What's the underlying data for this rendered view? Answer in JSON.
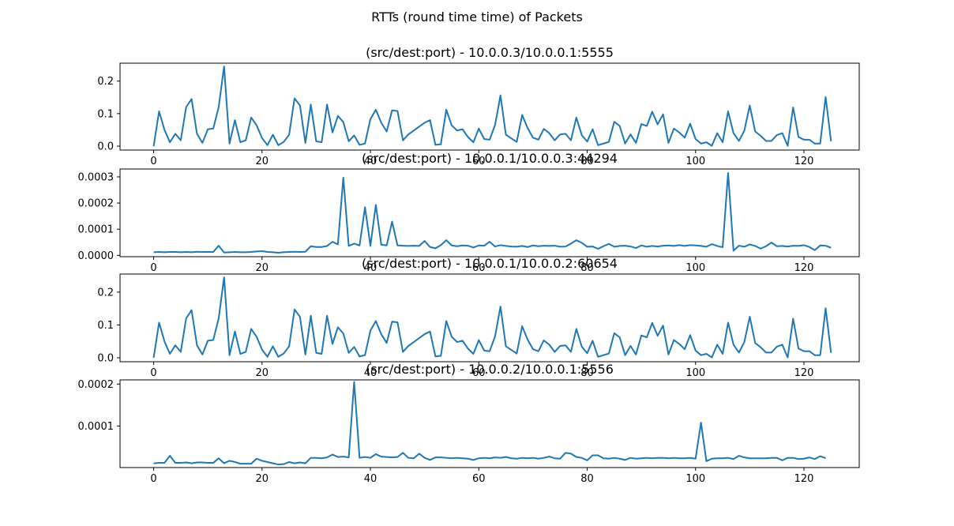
{
  "figure": {
    "suptitle": "RTTs (round time time) of Packets",
    "line_color": "#1f77b4"
  },
  "chart_data": [
    {
      "type": "line",
      "title": "(src/dest:port) - 10.0.0.3/10.0.0.1:5555",
      "xlim": [
        -6.2,
        130.2
      ],
      "ylim": [
        -0.012,
        0.255
      ],
      "xticks": [
        0,
        20,
        40,
        60,
        80,
        100,
        120
      ],
      "xtick_labels": [
        "0",
        "20",
        "40",
        "60",
        "80",
        "100",
        "120"
      ],
      "yticks": [
        0.0,
        0.1,
        0.2
      ],
      "ytick_labels": [
        "0.0",
        "0.1",
        "0.2"
      ],
      "series": [
        {
          "values": [
            0.0,
            0.107,
            0.05,
            0.012,
            0.038,
            0.018,
            0.12,
            0.145,
            0.038,
            0.01,
            0.052,
            0.054,
            0.12,
            0.245,
            0.008,
            0.08,
            0.012,
            0.018,
            0.088,
            0.064,
            0.025,
            0.003,
            0.035,
            0.003,
            0.013,
            0.035,
            0.147,
            0.125,
            0.01,
            0.128,
            0.015,
            0.012,
            0.128,
            0.042,
            0.093,
            0.074,
            0.015,
            0.033,
            0.004,
            0.008,
            0.083,
            0.112,
            0.072,
            0.045,
            0.11,
            0.108,
            0.018,
            0.036,
            0.048,
            0.06,
            0.072,
            0.08,
            0.004,
            0.006,
            0.112,
            0.064,
            0.048,
            0.052,
            0.028,
            0.012,
            0.054,
            0.022,
            0.02,
            0.065,
            0.156,
            0.035,
            0.024,
            0.013,
            0.096,
            0.056,
            0.026,
            0.02,
            0.053,
            0.04,
            0.018,
            0.036,
            0.038,
            0.018,
            0.088,
            0.034,
            0.014,
            0.052,
            0.003,
            0.008,
            0.013,
            0.075,
            0.062,
            0.008,
            0.036,
            0.01,
            0.068,
            0.062,
            0.106,
            0.067,
            0.098,
            0.01,
            0.054,
            0.042,
            0.026,
            0.069,
            0.022,
            0.008,
            0.012,
            0.001,
            0.04,
            0.012,
            0.107,
            0.04,
            0.016,
            0.048,
            0.125,
            0.045,
            0.032,
            0.016,
            0.016,
            0.034,
            0.04,
            0.001,
            0.119,
            0.028,
            0.02,
            0.02,
            0.008,
            0.008,
            0.151,
            0.015
          ]
        }
      ]
    },
    {
      "type": "line",
      "title": "(src/dest:port) - 10.0.0.1/10.0.0.3:44294",
      "xlim": [
        -6.2,
        130.2
      ],
      "ylim": [
        -5e-06,
        0.00033
      ],
      "xticks": [
        0,
        20,
        40,
        60,
        80,
        100,
        120
      ],
      "xtick_labels": [
        "0",
        "20",
        "40",
        "60",
        "80",
        "100",
        "120"
      ],
      "yticks": [
        0.0,
        0.0001,
        0.0002,
        0.0003
      ],
      "ytick_labels": [
        "0.0000",
        "0.0001",
        "0.0002",
        "0.0003"
      ],
      "series": [
        {
          "values": [
            1.2e-05,
            1.3e-05,
            1.2e-05,
            1.3e-05,
            1.3e-05,
            1.2e-05,
            1.3e-05,
            1.2e-05,
            1.4e-05,
            1.3e-05,
            1.3e-05,
            1.3e-05,
            3.7e-05,
            1.1e-05,
            1.2e-05,
            1.3e-05,
            1.2e-05,
            1.2e-05,
            1.3e-05,
            1.5e-05,
            1.6e-05,
            1.3e-05,
            1.2e-05,
            1e-05,
            1.2e-05,
            1.3e-05,
            1.4e-05,
            1.3e-05,
            1.4e-05,
            3.5e-05,
            3.2e-05,
            3.2e-05,
            3.6e-05,
            5.2e-05,
            4.2e-05,
            0.000297,
            3.6e-05,
            4.5e-05,
            3.8e-05,
            0.000184,
            3.6e-05,
            0.000193,
            4.1e-05,
            3.8e-05,
            0.000129,
            3.8e-05,
            3.7e-05,
            3.6e-05,
            3.7e-05,
            3.6e-05,
            5.5e-05,
            3.2e-05,
            2.7e-05,
            3.9e-05,
            5.8e-05,
            3.8e-05,
            3.5e-05,
            3.8e-05,
            3.7e-05,
            3e-05,
            3.8e-05,
            3.7e-05,
            5.2e-05,
            3.4e-05,
            3.9e-05,
            3.6e-05,
            3.4e-05,
            3.3e-05,
            3.6e-05,
            3.2e-05,
            3.8e-05,
            3.5e-05,
            3.7e-05,
            3.6e-05,
            3.7e-05,
            3.3e-05,
            3.4e-05,
            4.5e-05,
            5.8e-05,
            4.8e-05,
            3.3e-05,
            3.4e-05,
            2.5e-05,
            3.5e-05,
            4.4e-05,
            3.3e-05,
            3.6e-05,
            3.7e-05,
            3.4e-05,
            2.8e-05,
            3.8e-05,
            3.3e-05,
            3.6e-05,
            3.4e-05,
            3.7e-05,
            3.8e-05,
            3.6e-05,
            3.9e-05,
            3.6e-05,
            3.9e-05,
            3.8e-05,
            3.6e-05,
            3.3e-05,
            4.3e-05,
            3.6e-05,
            3.1e-05,
            0.000315,
            1.8e-05,
            3.7e-05,
            3.3e-05,
            4.2e-05,
            3.6e-05,
            2.6e-05,
            3.5e-05,
            4.9e-05,
            3.5e-05,
            3.6e-05,
            3.4e-05,
            3.7e-05,
            3.6e-05,
            3.9e-05,
            3.2e-05,
            2e-05,
            3.8e-05,
            3.7e-05,
            2.9e-05
          ]
        }
      ]
    },
    {
      "type": "line",
      "title": "(src/dest:port) - 10.0.0.1/10.0.0.2:60654",
      "xlim": [
        -6.2,
        130.2
      ],
      "ylim": [
        -0.012,
        0.255
      ],
      "xticks": [
        0,
        20,
        40,
        60,
        80,
        100,
        120
      ],
      "xtick_labels": [
        "0",
        "20",
        "40",
        "60",
        "80",
        "100",
        "120"
      ],
      "yticks": [
        0.0,
        0.1,
        0.2
      ],
      "ytick_labels": [
        "0.0",
        "0.1",
        "0.2"
      ],
      "series": [
        {
          "values": [
            0.0,
            0.107,
            0.05,
            0.012,
            0.038,
            0.018,
            0.12,
            0.145,
            0.038,
            0.01,
            0.052,
            0.054,
            0.12,
            0.245,
            0.008,
            0.08,
            0.012,
            0.018,
            0.088,
            0.064,
            0.025,
            0.003,
            0.035,
            0.003,
            0.013,
            0.035,
            0.147,
            0.125,
            0.01,
            0.128,
            0.015,
            0.012,
            0.128,
            0.042,
            0.093,
            0.074,
            0.015,
            0.033,
            0.004,
            0.008,
            0.083,
            0.112,
            0.072,
            0.045,
            0.11,
            0.108,
            0.018,
            0.036,
            0.048,
            0.06,
            0.072,
            0.08,
            0.004,
            0.006,
            0.112,
            0.064,
            0.048,
            0.052,
            0.028,
            0.012,
            0.054,
            0.022,
            0.02,
            0.065,
            0.156,
            0.035,
            0.024,
            0.013,
            0.096,
            0.056,
            0.026,
            0.02,
            0.053,
            0.04,
            0.018,
            0.036,
            0.038,
            0.018,
            0.088,
            0.034,
            0.014,
            0.052,
            0.003,
            0.008,
            0.013,
            0.075,
            0.062,
            0.008,
            0.036,
            0.01,
            0.068,
            0.062,
            0.106,
            0.067,
            0.098,
            0.01,
            0.054,
            0.042,
            0.026,
            0.069,
            0.022,
            0.008,
            0.012,
            0.001,
            0.04,
            0.012,
            0.107,
            0.04,
            0.016,
            0.048,
            0.125,
            0.045,
            0.032,
            0.016,
            0.016,
            0.034,
            0.04,
            0.001,
            0.119,
            0.028,
            0.02,
            0.02,
            0.008,
            0.008,
            0.151,
            0.015
          ]
        }
      ]
    },
    {
      "type": "line",
      "title": "(src/dest:port) - 10.0.0.2/10.0.0.1:5556",
      "xlim": [
        -6.2,
        130.2
      ],
      "ylim": [
        8e-07,
        0.00021
      ],
      "xticks": [
        0,
        20,
        40,
        60,
        80,
        100,
        120
      ],
      "xtick_labels": [
        "0",
        "20",
        "40",
        "60",
        "80",
        "100",
        "120"
      ],
      "yticks": [
        0.0001,
        0.0002
      ],
      "ytick_labels": [
        "0.0001",
        "0.0002"
      ],
      "series": [
        {
          "values": [
            1.1e-05,
            1.2e-05,
            1.2e-05,
            2.9e-05,
            1.2e-05,
            1.2e-05,
            1.3e-05,
            1.1e-05,
            1.3e-05,
            1.3e-05,
            1.2e-05,
            1.2e-05,
            2.3e-05,
            1.1e-05,
            1.7e-05,
            1.4e-05,
            1e-05,
            1e-05,
            1e-05,
            2.2e-05,
            1.7e-05,
            1.4e-05,
            1.1e-05,
            8e-06,
            9e-06,
            1.4e-05,
            1.1e-05,
            1.3e-05,
            1.1e-05,
            2.4e-05,
            2.4e-05,
            2.3e-05,
            2.5e-05,
            3.2e-05,
            2.6e-05,
            2.7e-05,
            2.5e-05,
            0.000205,
            2.4e-05,
            2.6e-05,
            2.4e-05,
            3.3e-05,
            2.7e-05,
            2.6e-05,
            2.5e-05,
            2.6e-05,
            3.6e-05,
            2.4e-05,
            2.3e-05,
            3.4e-05,
            2.4e-05,
            1.9e-05,
            2.5e-05,
            2.5e-05,
            2.4e-05,
            2.3e-05,
            2.4e-05,
            2.3e-05,
            2.2e-05,
            1.9e-05,
            2.3e-05,
            2.4e-05,
            2.3e-05,
            2.5e-05,
            2.4e-05,
            2.6e-05,
            2.3e-05,
            2.2e-05,
            2.4e-05,
            2.3e-05,
            2.4e-05,
            2.2e-05,
            2.4e-05,
            2.7e-05,
            2.3e-05,
            2.2e-05,
            3.6e-05,
            3.4e-05,
            2.6e-05,
            2.4e-05,
            1.8e-05,
            3e-05,
            3e-05,
            2.3e-05,
            2.2e-05,
            2.4e-05,
            2.2e-05,
            1.9e-05,
            2.4e-05,
            2.2e-05,
            2.3e-05,
            2.4e-05,
            2.3e-05,
            2.4e-05,
            2.4e-05,
            2.3e-05,
            2.4e-05,
            2.3e-05,
            2.3e-05,
            2.4e-05,
            2.2e-05,
            0.000108,
            1.6e-05,
            2.2e-05,
            2.3e-05,
            2.3e-05,
            2.4e-05,
            2.1e-05,
            2.9e-05,
            2.5e-05,
            2.3e-05,
            2.3e-05,
            2.3e-05,
            2.3e-05,
            2.4e-05,
            2.4e-05,
            1.8e-05,
            2.4e-05,
            2.4e-05,
            2.1e-05,
            2.2e-05,
            2.5e-05,
            2.1e-05,
            2.8e-05,
            2.3e-05
          ]
        }
      ]
    }
  ]
}
